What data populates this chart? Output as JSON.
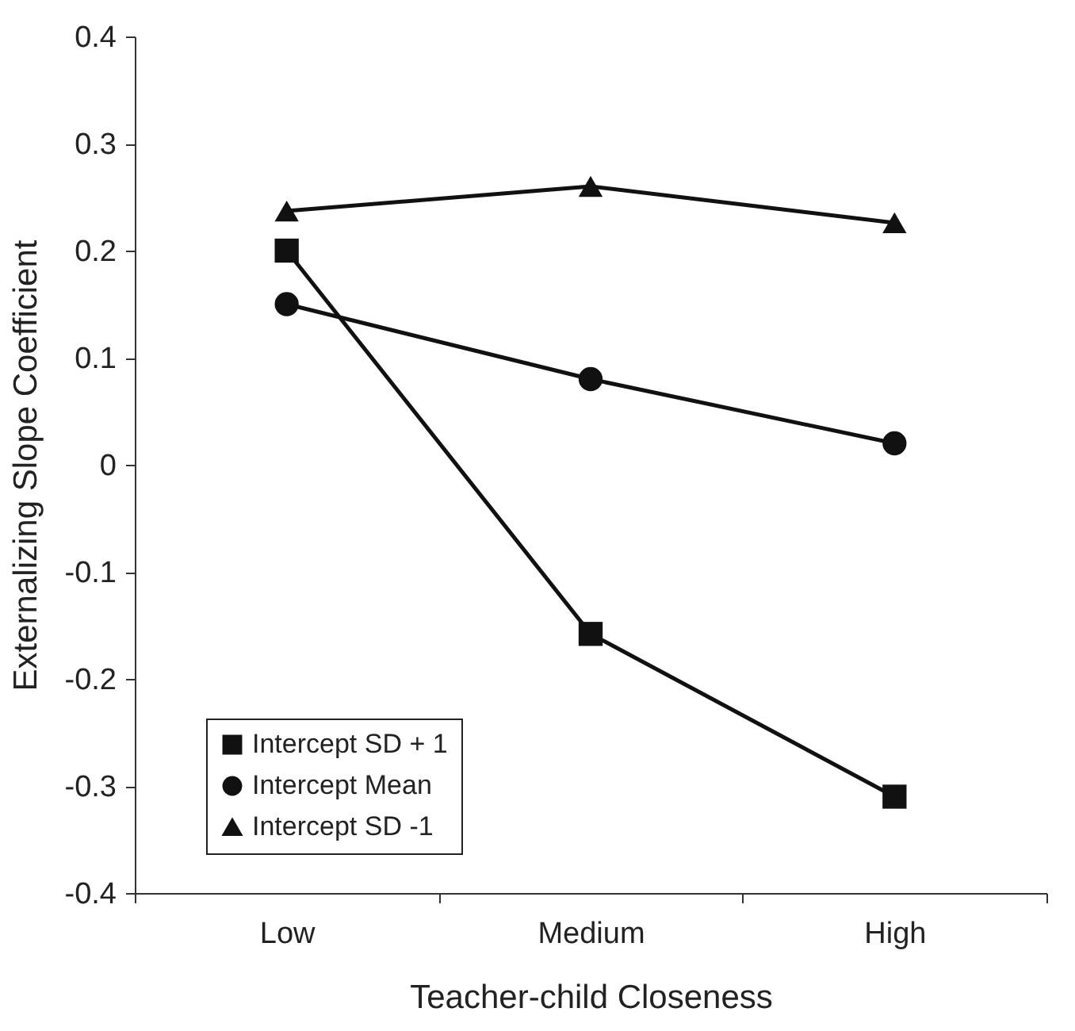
{
  "chart_data": {
    "type": "line",
    "xlabel": "Teacher-child Closeness",
    "ylabel": "Externalizing Slope Coefficient",
    "categories": [
      "Low",
      "Medium",
      "High"
    ],
    "series": [
      {
        "name": "Intercept SD + 1",
        "color": "#111111",
        "marker": "square",
        "values": [
          0.2,
          -0.158,
          -0.31
        ]
      },
      {
        "name": "Intercept Mean",
        "color": "#111111",
        "marker": "circle",
        "values": [
          0.15,
          0.08,
          0.02
        ]
      },
      {
        "name": "Intercept SD -1",
        "color": "#111111",
        "marker": "triangle",
        "values": [
          0.237,
          0.26,
          0.226
        ]
      }
    ],
    "ylim": [
      -0.4,
      0.4
    ],
    "yticks": [
      -0.4,
      -0.3,
      -0.2,
      -0.1,
      0,
      0.1,
      0.2,
      0.3,
      0.4
    ],
    "grid": false,
    "legend": "bottom left"
  }
}
